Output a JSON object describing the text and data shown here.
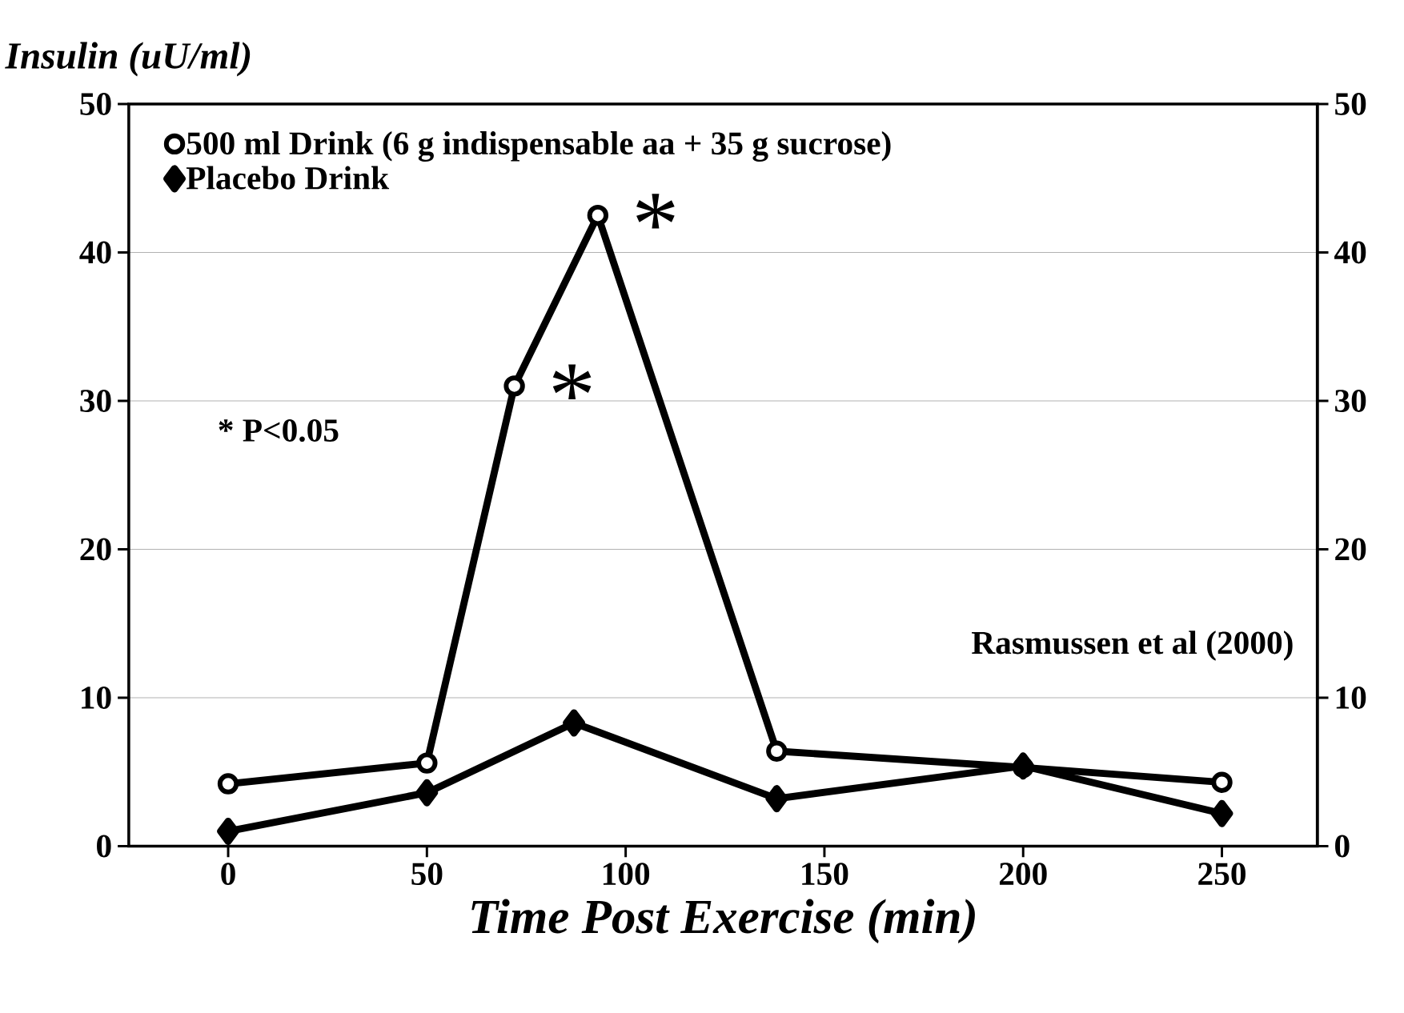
{
  "chart_data": {
    "type": "line",
    "xlabel": "Time Post Exercise (min)",
    "ylabel": "Insulin (uU/ml)",
    "series": [
      {
        "name": "500 ml Drink (6 g indispensable aa + 35 g sucrose)",
        "color": "#000000",
        "marker": "circle",
        "x": [
          0,
          50,
          72,
          93,
          138,
          200,
          250
        ],
        "values": [
          4.2,
          5.6,
          31,
          42.5,
          6.4,
          5.3,
          4.3
        ]
      },
      {
        "name": "Placebo Drink",
        "color": "#000000",
        "marker": "diamond",
        "x": [
          0,
          50,
          87,
          138,
          200,
          250
        ],
        "values": [
          1.0,
          3.6,
          8.3,
          3.2,
          5.4,
          2.2
        ]
      }
    ],
    "xlim": [
      -25,
      274
    ],
    "ylim": [
      0,
      50
    ],
    "xticks": [
      0,
      50,
      100,
      150,
      200,
      250
    ],
    "yticks": [
      0,
      10,
      20,
      30,
      40,
      50
    ],
    "y2lim": [
      0,
      50
    ],
    "y2ticks": [
      0,
      10,
      20,
      30,
      40,
      50
    ],
    "grid": "y",
    "legend": "top left",
    "line_style": "solid",
    "annotations": [
      {
        "text": "*",
        "x": 93,
        "y": 42.5
      },
      {
        "text": "*",
        "x": 72,
        "y": 31
      },
      "* P<0.05",
      "Rasmussen et al (2000)"
    ]
  }
}
